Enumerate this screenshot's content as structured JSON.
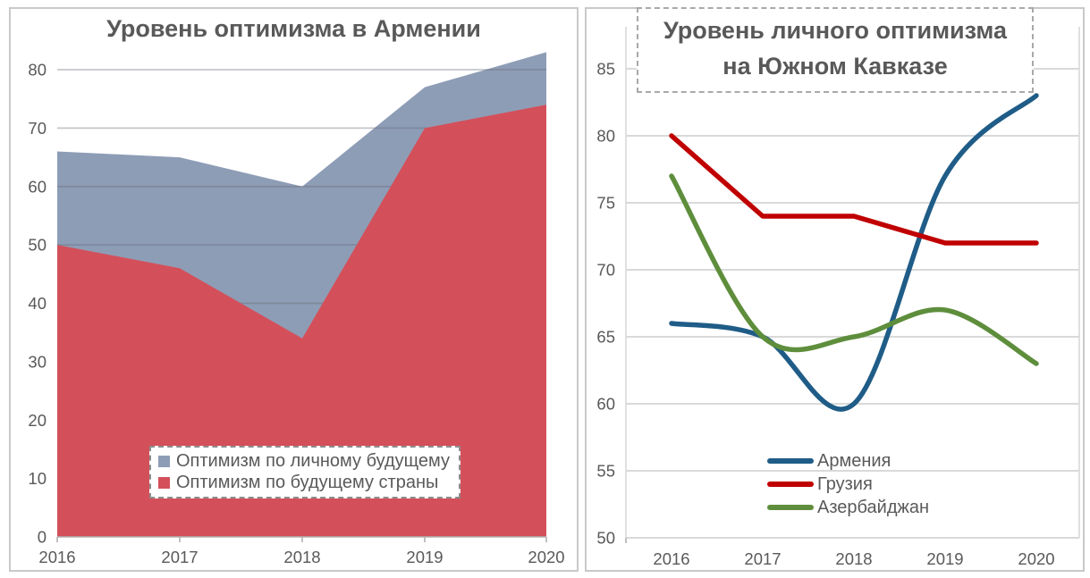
{
  "chart_data": [
    {
      "type": "area",
      "title": "Уровень оптимизма в Армении",
      "categories": [
        "2016",
        "2017",
        "2018",
        "2019",
        "2020"
      ],
      "series": [
        {
          "name": "Оптимизм по личному будущему",
          "values": [
            66,
            65,
            60,
            77,
            83
          ],
          "color": "#8E9DB6",
          "smooth": false
        },
        {
          "name": "Оптимизм по будущему страны",
          "values": [
            50,
            46,
            34,
            70,
            74
          ],
          "color": "#D3505A",
          "smooth": false
        }
      ],
      "xlabel": "",
      "ylabel": "",
      "ylim": [
        0,
        84
      ],
      "yticks": [
        0,
        10,
        20,
        30,
        40,
        50,
        60,
        70,
        80
      ],
      "grid": true,
      "area_mode": "overlay (second series drawn in front, not stacked)",
      "legend_position": "inside bottom-center, white box with dashed border",
      "text_color": "#595959",
      "gridline_color": "#D9D9D9"
    },
    {
      "type": "line",
      "title": "Уровень личного оптимизма на Южном Кавказе",
      "title_lines": [
        "Уровень личного оптимизма",
        "на Южном Кавказе"
      ],
      "title_style": "white box with dashed gray border overlapping plot top",
      "categories": [
        "2016",
        "2017",
        "2018",
        "2019",
        "2020"
      ],
      "series": [
        {
          "name": "Армения",
          "values": [
            66,
            65,
            60,
            77,
            83
          ],
          "color": "#1F5C87",
          "smooth": true
        },
        {
          "name": "Грузия",
          "values": [
            80,
            74,
            74,
            72,
            72
          ],
          "color": "#C00000",
          "smooth": false
        },
        {
          "name": "Азербайджан",
          "values": [
            77,
            65,
            65,
            67,
            63
          ],
          "color": "#5E8E3C",
          "smooth": true
        }
      ],
      "xlabel": "",
      "ylabel": "",
      "ylim": [
        50,
        86
      ],
      "yticks": [
        50,
        55,
        60,
        65,
        70,
        75,
        80,
        85
      ],
      "grid": true,
      "legend_position": "inside bottom-center, no box, thick line markers",
      "text_color": "#595959",
      "gridline_color": "#D9D9D9"
    }
  ]
}
